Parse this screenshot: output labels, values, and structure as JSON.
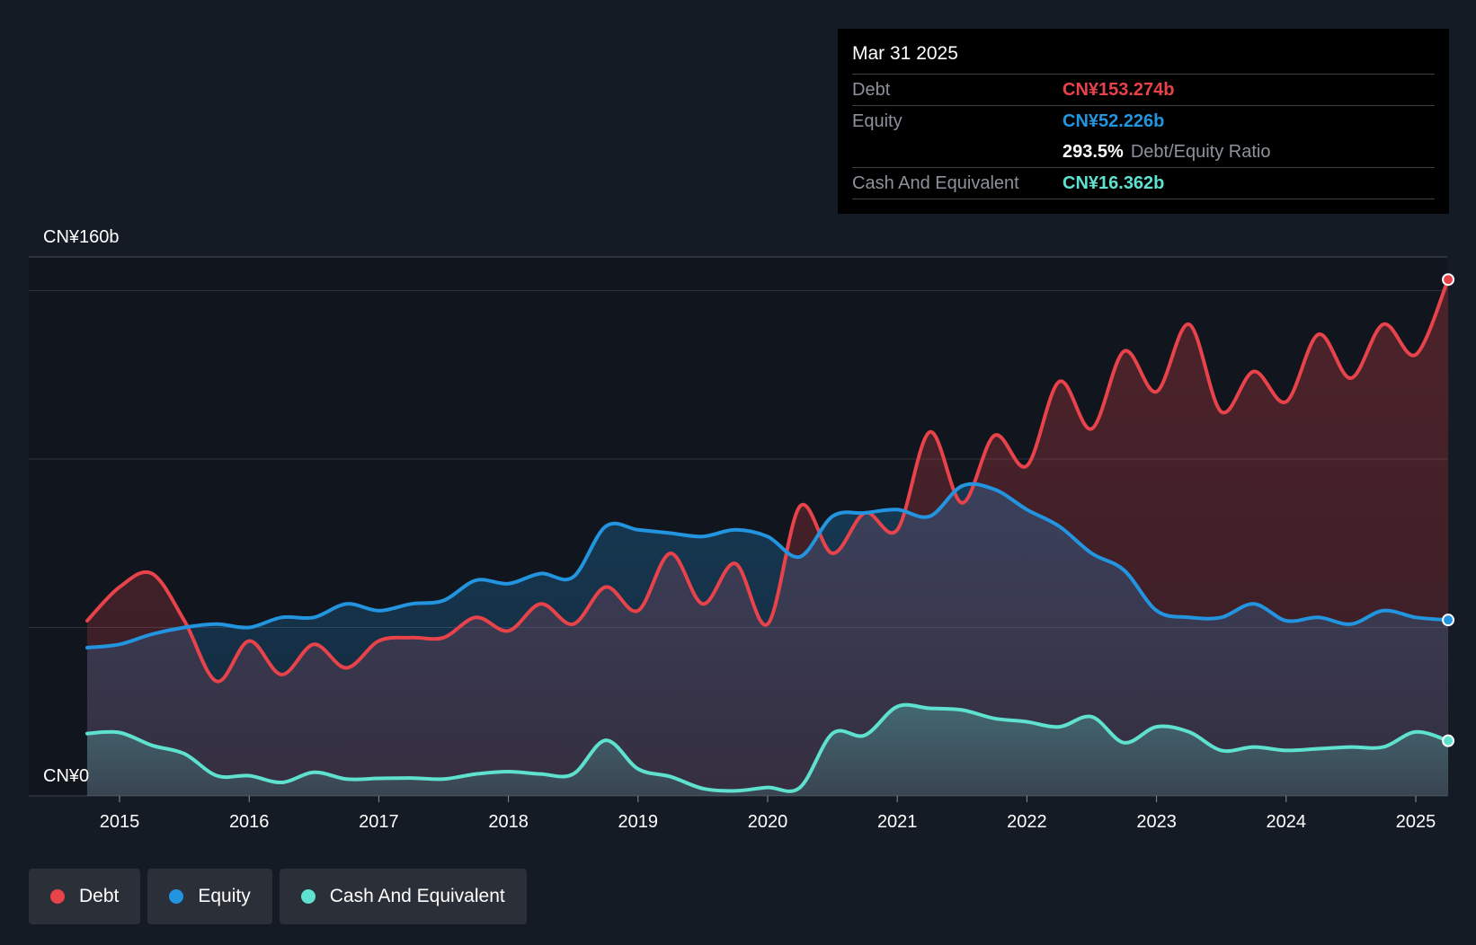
{
  "tooltip": {
    "date": "Mar 31 2025",
    "debt_label": "Debt",
    "debt_value": "CN¥153.274b",
    "equity_label": "Equity",
    "equity_value": "CN¥52.226b",
    "ratio_value": "293.5%",
    "ratio_label": "Debt/Equity Ratio",
    "cash_label": "Cash And Equivalent",
    "cash_value": "CN¥16.362b"
  },
  "legend": [
    {
      "label": "Debt",
      "color": "#e8424a"
    },
    {
      "label": "Equity",
      "color": "#2394df"
    },
    {
      "label": "Cash And Equivalent",
      "color": "#5ee1cf"
    }
  ],
  "chart_data": {
    "type": "area",
    "title": "",
    "xlabel": "",
    "ylabel": "",
    "ylim": [
      0,
      160
    ],
    "y_tick_labels": [
      "CN¥0",
      "CN¥160b"
    ],
    "x_ticks": [
      2015,
      2016,
      2017,
      2018,
      2019,
      2020,
      2021,
      2022,
      2023,
      2024,
      2025
    ],
    "grid": true,
    "colors": {
      "debt": "#e8424a",
      "equity": "#2394df",
      "cash": "#5ee1cf"
    },
    "x": [
      2014.75,
      2015.0,
      2015.25,
      2015.5,
      2015.75,
      2016.0,
      2016.25,
      2016.5,
      2016.75,
      2017.0,
      2017.25,
      2017.5,
      2017.75,
      2018.0,
      2018.25,
      2018.5,
      2018.75,
      2019.0,
      2019.25,
      2019.5,
      2019.75,
      2020.0,
      2020.25,
      2020.5,
      2020.75,
      2021.0,
      2021.25,
      2021.5,
      2021.75,
      2022.0,
      2022.25,
      2022.5,
      2022.75,
      2023.0,
      2023.25,
      2023.5,
      2023.75,
      2024.0,
      2024.25,
      2024.5,
      2024.75,
      2025.0,
      2025.25
    ],
    "series": [
      {
        "name": "Debt",
        "values": [
          52,
          62,
          66,
          52,
          34,
          46,
          36,
          45,
          38,
          46,
          47,
          47,
          53,
          49,
          57,
          51,
          62,
          55,
          72,
          57,
          69,
          51,
          86,
          72,
          84,
          79,
          108,
          87,
          107,
          98,
          123,
          109,
          132,
          120,
          140,
          114,
          126,
          117,
          137,
          124,
          140,
          131,
          153.274
        ]
      },
      {
        "name": "Equity",
        "values": [
          44,
          45,
          48,
          50,
          51,
          50,
          53,
          53,
          57,
          55,
          57,
          58,
          64,
          63,
          66,
          65,
          80,
          79,
          78,
          77,
          79,
          77,
          71,
          83,
          84,
          85,
          83,
          92,
          91,
          85,
          80,
          72,
          67,
          55,
          53,
          53,
          57,
          52,
          53,
          51,
          55,
          53,
          52.226
        ]
      },
      {
        "name": "Cash And Equivalent",
        "values": [
          18.5,
          18.8,
          15,
          12.5,
          6,
          6,
          4,
          7,
          5,
          5.2,
          5.3,
          5,
          6.5,
          7.2,
          6.5,
          6.5,
          16.5,
          8,
          5.7,
          2.2,
          1.5,
          2.5,
          2.5,
          18.5,
          18,
          26.5,
          26,
          25.5,
          23,
          22,
          20.5,
          23.5,
          15.8,
          20.5,
          19,
          13.5,
          14.5,
          13.5,
          14,
          14.5,
          14.5,
          19,
          16.362
        ]
      }
    ]
  }
}
